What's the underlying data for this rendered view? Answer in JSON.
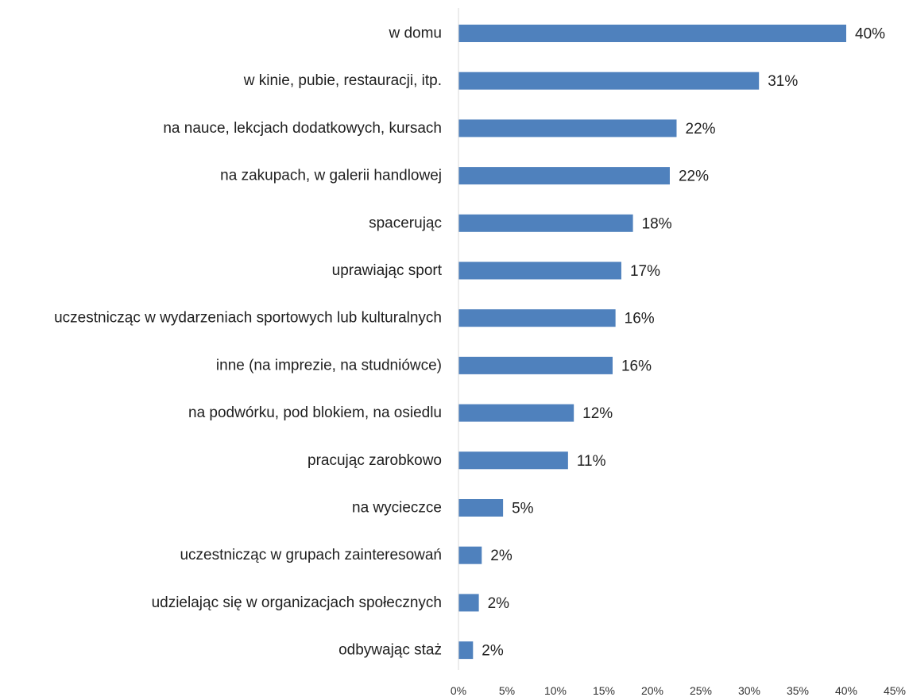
{
  "chart_data": {
    "type": "bar",
    "orientation": "horizontal",
    "categories": [
      "w domu",
      "w kinie, pubie, restauracji, itp.",
      "na nauce, lekcjach dodatkowych, kursach",
      "na zakupach, w galerii handlowej",
      "spacerując",
      "uprawiając sport",
      "uczestnicząc w wydarzeniach sportowych lub kulturalnych",
      "inne  (na imprezie, na studniówce)",
      "na podwórku, pod blokiem, na osiedlu",
      "pracując zarobkowo",
      "na wycieczce",
      "uczestnicząc w grupach zainteresowań",
      "udzielając się w organizacjach społecznych",
      "odbywając staż"
    ],
    "values": [
      40,
      31,
      22.5,
      21.8,
      18,
      16.8,
      16.2,
      15.9,
      11.9,
      11.3,
      4.6,
      2.4,
      2.1,
      1.5
    ],
    "data_labels": [
      "40%",
      "31%",
      "22%",
      "22%",
      "18%",
      "17%",
      "16%",
      "16%",
      "12%",
      "11%",
      "5%",
      "2%",
      "2%",
      "2%"
    ],
    "xlim": [
      0,
      45
    ],
    "x_ticks": [
      "0%",
      "5%",
      "10%",
      "15%",
      "20%",
      "25%",
      "30%",
      "35%",
      "40%",
      "45%"
    ],
    "title": "",
    "xlabel": "",
    "ylabel": "",
    "grid": false,
    "bar_color": "#4f81bd",
    "axis_color": "#d9d9d9"
  }
}
